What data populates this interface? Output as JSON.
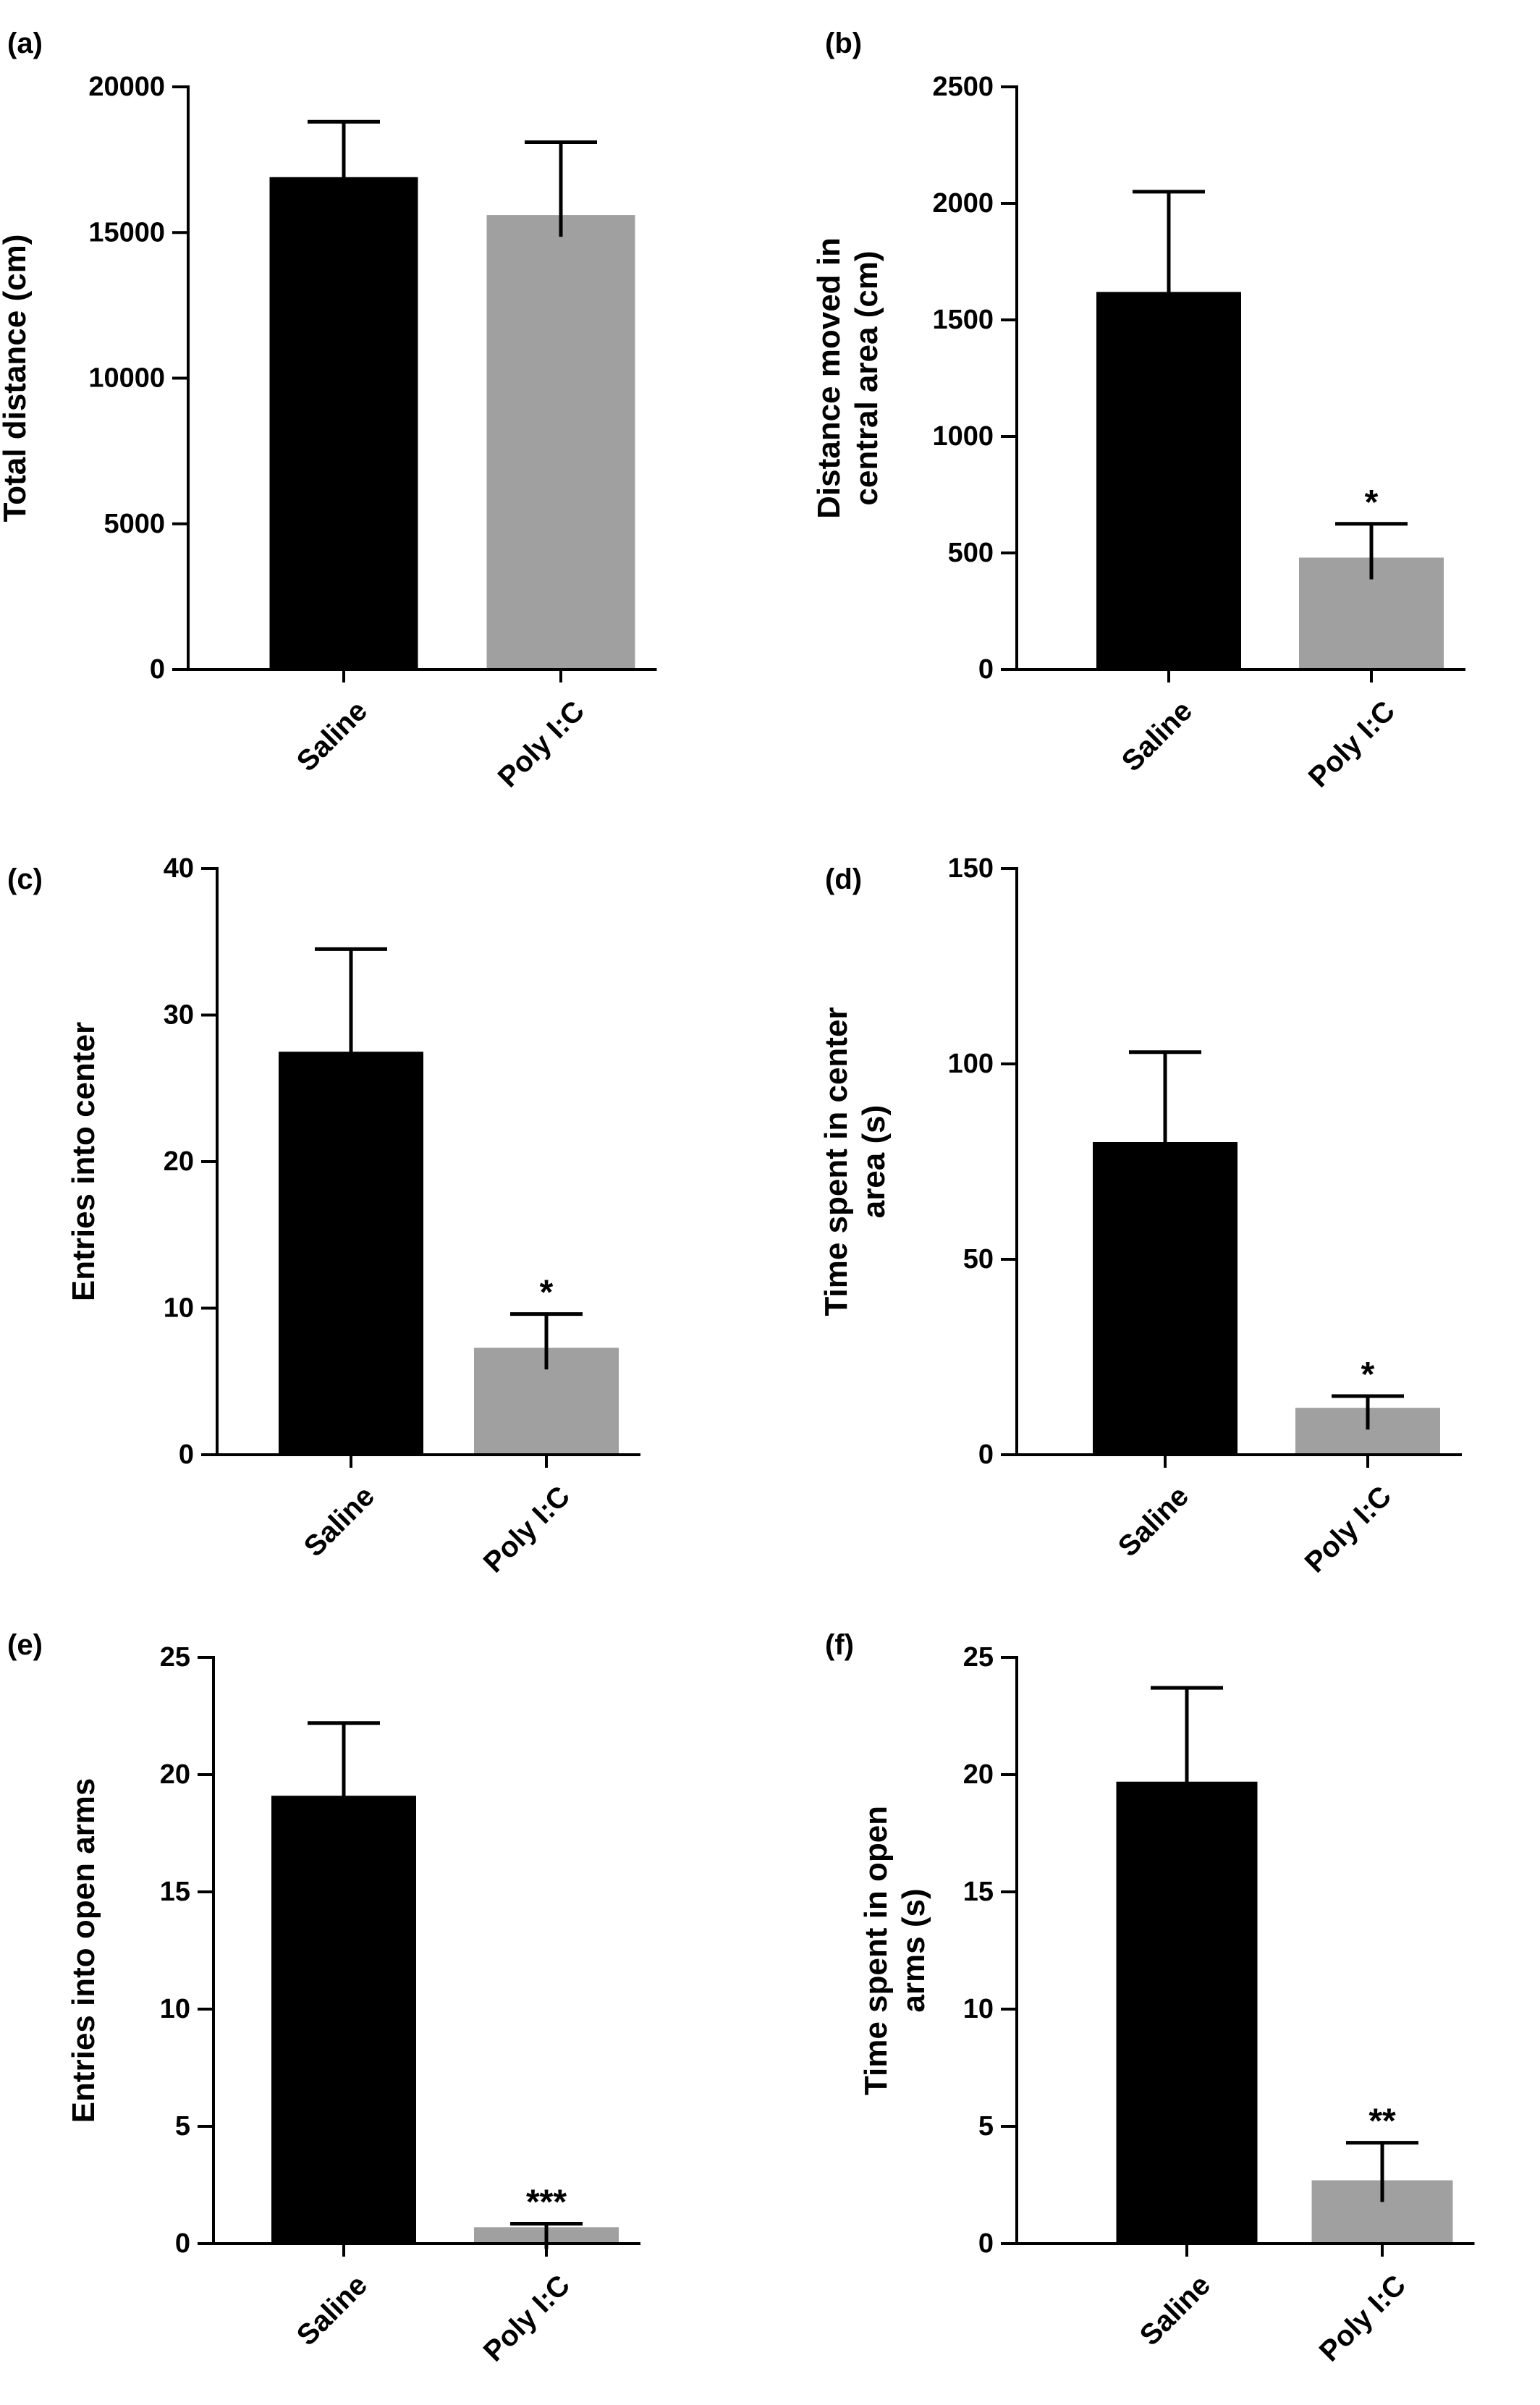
{
  "chart_data": [
    {
      "type": "bar",
      "panel_label": "(a)",
      "categories": [
        "Saline",
        "Poly I:C"
      ],
      "values": [
        16900,
        15600
      ],
      "errors": [
        1900,
        2500
      ],
      "significance": [
        "",
        ""
      ],
      "ylabel": [
        "Total distance (cm)"
      ],
      "ylim": [
        0,
        20000
      ],
      "yticks": [
        0,
        5000,
        10000,
        15000,
        20000
      ],
      "colors": [
        "#000000",
        "#a0a0a0"
      ],
      "grid": false,
      "legend": "none"
    },
    {
      "type": "bar",
      "panel_label": "(b)",
      "categories": [
        "Saline",
        "Poly I:C"
      ],
      "values": [
        1620,
        480
      ],
      "errors": [
        430,
        145
      ],
      "significance": [
        "",
        "*"
      ],
      "ylabel": [
        "Distance moved in",
        "central area (cm)"
      ],
      "ylim": [
        0,
        2500
      ],
      "yticks": [
        0,
        500,
        1000,
        1500,
        2000,
        2500
      ],
      "colors": [
        "#000000",
        "#a0a0a0"
      ],
      "grid": false,
      "legend": "none"
    },
    {
      "type": "bar",
      "panel_label": "(c)",
      "categories": [
        "Saline",
        "Poly I:C"
      ],
      "values": [
        27.5,
        7.3
      ],
      "errors": [
        7.0,
        2.3
      ],
      "significance": [
        "",
        "*"
      ],
      "ylabel": [
        "Entries into center"
      ],
      "ylim": [
        0,
        40
      ],
      "yticks": [
        0,
        10,
        20,
        30,
        40
      ],
      "colors": [
        "#000000",
        "#a0a0a0"
      ],
      "grid": false,
      "legend": "none"
    },
    {
      "type": "bar",
      "panel_label": "(d)",
      "categories": [
        "Saline",
        "Poly I:C"
      ],
      "values": [
        80,
        12
      ],
      "errors": [
        23,
        3
      ],
      "significance": [
        "",
        "*"
      ],
      "ylabel": [
        "Time spent in center",
        "area (s)"
      ],
      "ylim": [
        0,
        150
      ],
      "yticks": [
        0,
        50,
        100,
        150
      ],
      "colors": [
        "#000000",
        "#a0a0a0"
      ],
      "grid": false,
      "legend": "none"
    },
    {
      "type": "bar",
      "panel_label": "(e)",
      "categories": [
        "Saline",
        "Poly I:C"
      ],
      "values": [
        19.1,
        0.7
      ],
      "errors": [
        3.1,
        0.15
      ],
      "significance": [
        "",
        "***"
      ],
      "ylabel": [
        "Entries into open arms"
      ],
      "ylim": [
        0,
        25
      ],
      "yticks": [
        0,
        5,
        10,
        15,
        20,
        25
      ],
      "colors": [
        "#000000",
        "#a0a0a0"
      ],
      "grid": false,
      "legend": "none"
    },
    {
      "type": "bar",
      "panel_label": "(f)",
      "categories": [
        "Saline",
        "Poly I:C"
      ],
      "values": [
        19.7,
        2.7
      ],
      "errors": [
        4.0,
        1.6
      ],
      "significance": [
        "",
        "**"
      ],
      "ylabel": [
        "Time spent in open",
        "arms (s)"
      ],
      "ylim": [
        0,
        25
      ],
      "yticks": [
        0,
        5,
        10,
        15,
        20,
        25
      ],
      "colors": [
        "#000000",
        "#a0a0a0"
      ],
      "grid": false,
      "legend": "none"
    }
  ]
}
